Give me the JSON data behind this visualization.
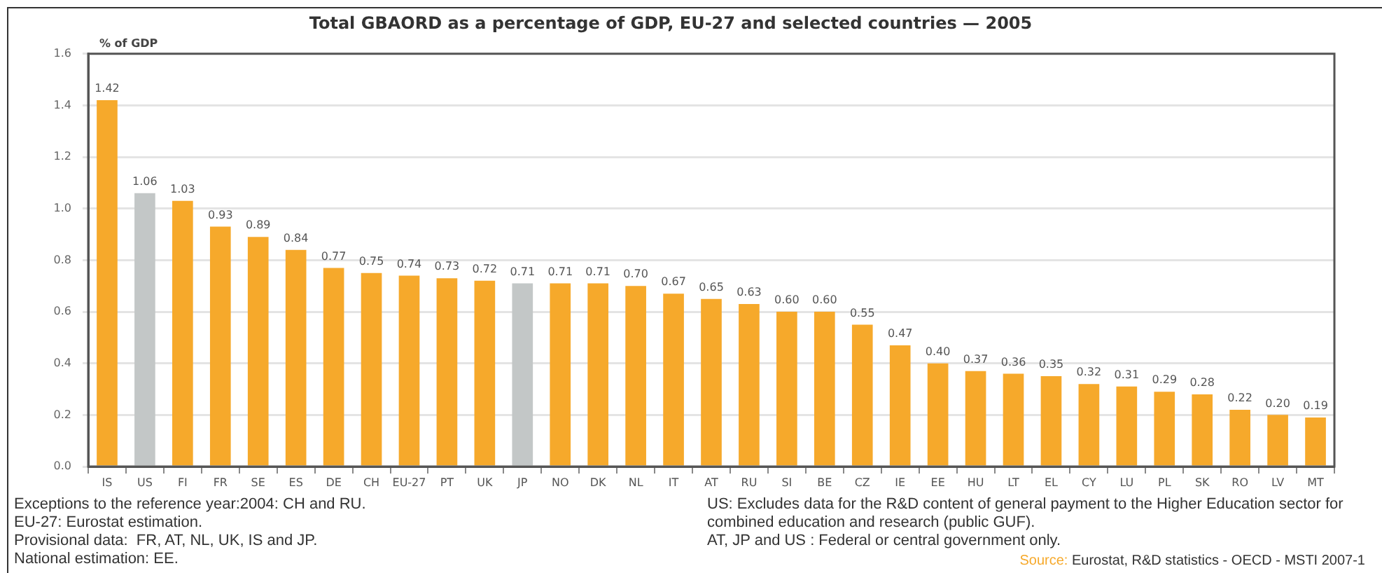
{
  "chart_data": {
    "type": "bar",
    "title": "Total GBAORD as a percentage of GDP, EU-27 and selected countries — 2005",
    "ylabel": "% of GDP",
    "categories": [
      "IS",
      "US",
      "FI",
      "FR",
      "SE",
      "ES",
      "DE",
      "CH",
      "EU-27",
      "PT",
      "UK",
      "JP",
      "NO",
      "DK",
      "NL",
      "IT",
      "AT",
      "RU",
      "SI",
      "BE",
      "CZ",
      "IE",
      "EE",
      "HU",
      "LT",
      "EL",
      "CY",
      "LU",
      "PL",
      "SK",
      "RO",
      "LV",
      "MT"
    ],
    "values": [
      1.42,
      1.06,
      1.03,
      0.93,
      0.89,
      0.84,
      0.77,
      0.75,
      0.74,
      0.73,
      0.72,
      0.71,
      0.71,
      0.71,
      0.7,
      0.67,
      0.65,
      0.63,
      0.6,
      0.6,
      0.55,
      0.47,
      0.4,
      0.37,
      0.36,
      0.35,
      0.32,
      0.31,
      0.29,
      0.28,
      0.22,
      0.2,
      0.19
    ],
    "value_labels": [
      "1.42",
      "1.06",
      "1.03",
      "0.93",
      "0.89",
      "0.84",
      "0.77",
      "0.75",
      "0.74",
      "0.73",
      "0.72",
      "0.71",
      "0.71",
      "0.71",
      "0.70",
      "0.67",
      "0.65",
      "0.63",
      "0.60",
      "0.60",
      "0.55",
      "0.47",
      "0.40",
      "0.37",
      "0.36",
      "0.35",
      "0.32",
      "0.31",
      "0.29",
      "0.28",
      "0.22",
      "0.20",
      "0.19"
    ],
    "colors": [
      "#f6a92b",
      "#c3c7c7",
      "#f6a92b",
      "#f6a92b",
      "#f6a92b",
      "#f6a92b",
      "#f6a92b",
      "#f6a92b",
      "#f6a92b",
      "#f6a92b",
      "#f6a92b",
      "#c3c7c7",
      "#f6a92b",
      "#f6a92b",
      "#f6a92b",
      "#f6a92b",
      "#f6a92b",
      "#f6a92b",
      "#f6a92b",
      "#f6a92b",
      "#f6a92b",
      "#f6a92b",
      "#f6a92b",
      "#f6a92b",
      "#f6a92b",
      "#f6a92b",
      "#f6a92b",
      "#f6a92b",
      "#f6a92b",
      "#f6a92b",
      "#f6a92b",
      "#f6a92b",
      "#f6a92b"
    ],
    "ylim": [
      0,
      1.6
    ],
    "yticks": [
      {
        "value": 0,
        "label": "0.0"
      },
      0.2,
      0.4,
      0.6,
      0.8,
      {
        "value": 1,
        "label": "1.0"
      },
      1.2,
      1.4,
      1.6
    ],
    "grid": "y",
    "annotations": [
      "Exceptions to the reference year:2004: CH and RU.",
      "EU-27: Eurostat estimation.",
      "Provisional data:  FR, AT, NL, UK, IS and JP.",
      "National estimation: EE.",
      "US: Excludes data for the R&D content of general payment to the Higher Education sector for combined education and research (public GUF).",
      "AT, JP and US : Federal or central government only.",
      "Source: Eurostat, R&D statistics - OECD - MSTI 2007-1"
    ]
  }
}
